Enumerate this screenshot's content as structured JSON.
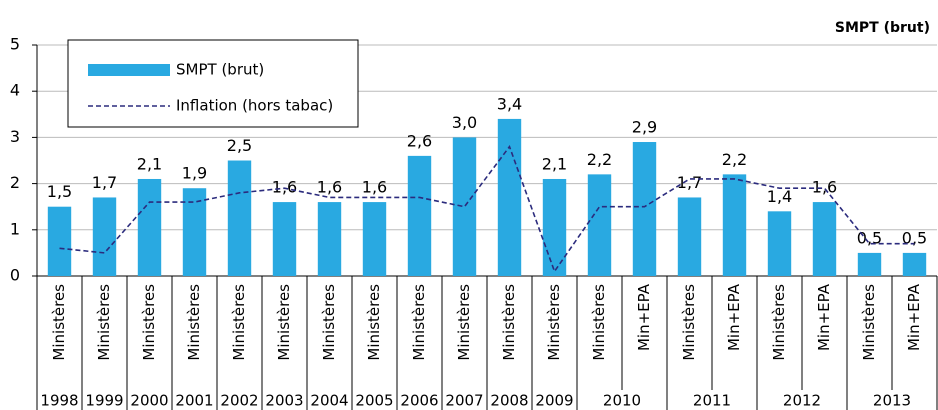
{
  "chart_data": {
    "type": "bar",
    "y_axis_label": "SMPT (brut)",
    "categories": [
      "Ministères",
      "Ministères",
      "Ministères",
      "Ministères",
      "Ministères",
      "Ministères",
      "Ministères",
      "Ministères",
      "Ministères",
      "Ministères",
      "Ministères",
      "Ministères",
      "Ministères",
      "Min+EPA",
      "Ministères",
      "Min+EPA",
      "Ministères",
      "Min+EPA",
      "Ministères",
      "Min+EPA"
    ],
    "years": [
      "1998",
      "1999",
      "2000",
      "2001",
      "2002",
      "2003",
      "2004",
      "2005",
      "2006",
      "2007",
      "2008",
      "2009",
      "2010",
      null,
      "2011",
      null,
      "2012",
      null,
      "2013",
      null
    ],
    "series": [
      {
        "name": "SMPT (brut)",
        "color": "#29a9e1",
        "kind": "bar",
        "values": [
          1.5,
          1.7,
          2.1,
          1.9,
          2.5,
          1.6,
          1.6,
          1.6,
          2.6,
          3.0,
          3.4,
          2.1,
          2.2,
          2.9,
          1.7,
          2.2,
          1.4,
          1.6,
          0.5,
          0.5
        ],
        "value_labels": [
          "1,5",
          "1,7",
          "2,1",
          "1,9",
          "2,5",
          "1,6",
          "1,6",
          "1,6",
          "2,6",
          "3,0",
          "3,4",
          "2,1",
          "2,2",
          "2,9",
          "1,7",
          "2,2",
          "1,4",
          "1,6",
          "0,5",
          "0,5"
        ]
      },
      {
        "name": "Inflation (hors tabac)",
        "color": "#2b2b7d",
        "kind": "line",
        "dashed": true,
        "values": [
          0.6,
          0.5,
          1.6,
          1.6,
          1.8,
          1.9,
          1.7,
          1.7,
          1.7,
          1.5,
          2.8,
          0.1,
          1.5,
          1.5,
          2.1,
          2.1,
          1.9,
          1.9,
          0.7,
          0.7
        ]
      }
    ],
    "ylim": [
      0,
      5
    ],
    "yticks": [
      0,
      1,
      2,
      3,
      4,
      5
    ],
    "grid": true
  }
}
